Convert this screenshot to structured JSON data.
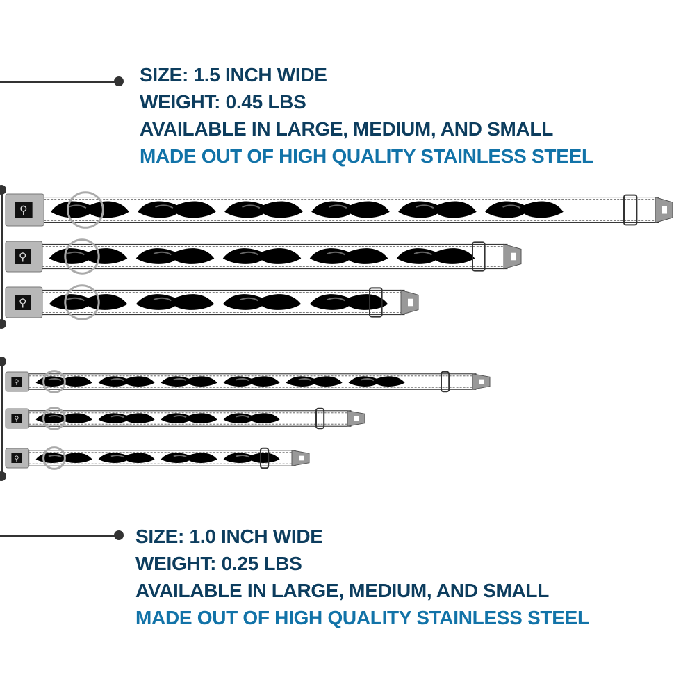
{
  "wide_collar": {
    "size": "SIZE: 1.5 INCH WIDE",
    "weight": "WEIGHT: 0.45 LBS",
    "availability": "AVAILABLE IN LARGE, MEDIUM, AND SMALL",
    "material": "MADE OUT OF HIGH QUALITY STAINLESS STEEL",
    "variants": [
      "large",
      "medium",
      "small"
    ]
  },
  "narrow_collar": {
    "size": "SIZE: 1.0 INCH WIDE",
    "weight": "WEIGHT: 0.25 LBS",
    "availability": "AVAILABLE IN LARGE, MEDIUM, AND SMALL",
    "material": "MADE OUT OF HIGH QUALITY STAINLESS STEEL",
    "variants": [
      "large",
      "medium",
      "small"
    ]
  },
  "colors": {
    "heading": "#0d3d5e",
    "accent": "#1273a8",
    "pattern": "#000000",
    "strap": "#ffffff",
    "metal": "#b8b8b8"
  },
  "pattern_icon": "mustache-icon",
  "buckle_icon": "bone-icon"
}
